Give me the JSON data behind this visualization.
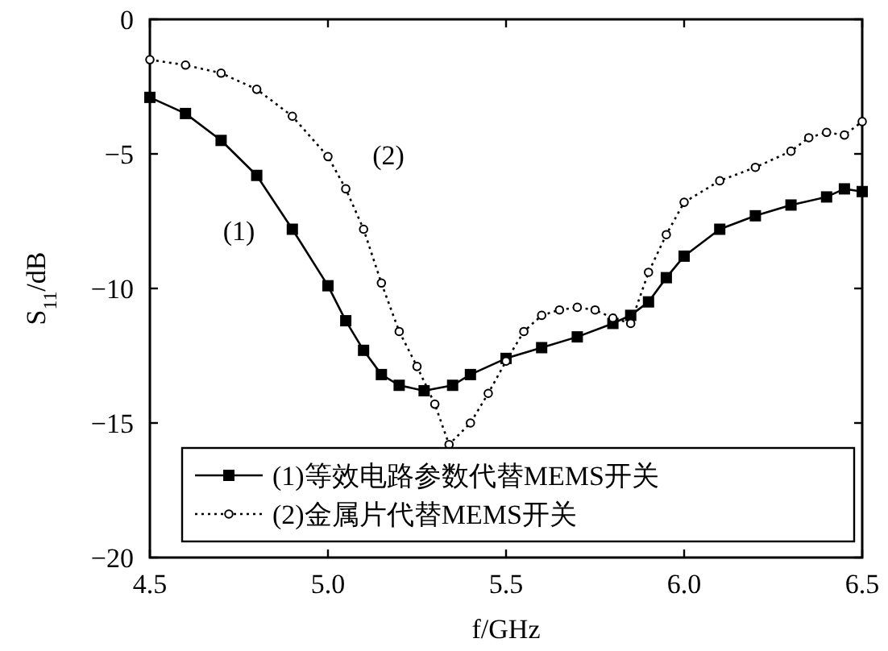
{
  "chart_data": {
    "type": "line",
    "xlabel": "f/GHz",
    "ylabel": "S$_{11}$/dB",
    "xlim": [
      4.5,
      6.5
    ],
    "ylim": [
      -20,
      0
    ],
    "xticks": [
      {
        "value": 4.5,
        "label": "4.5"
      },
      {
        "value": 5.0,
        "label": "5.0"
      },
      {
        "value": 5.5,
        "label": "5.5"
      },
      {
        "value": 6.0,
        "label": "6.0"
      },
      {
        "value": 6.5,
        "label": "6.5"
      }
    ],
    "yticks": [
      -20,
      -15,
      -10,
      -5,
      0
    ],
    "grid": false,
    "legend": "bottom",
    "series": [
      {
        "name": "(1)等效电路参数代替MEMS开关",
        "color": "#000000",
        "marker": "square",
        "line_style": "solid",
        "x": [
          4.5,
          4.6,
          4.7,
          4.8,
          4.9,
          5.0,
          5.05,
          5.1,
          5.15,
          5.2,
          5.27,
          5.35,
          5.4,
          5.5,
          5.6,
          5.7,
          5.8,
          5.85,
          5.9,
          5.95,
          6.0,
          6.1,
          6.2,
          6.3,
          6.4,
          6.45,
          6.5
        ],
        "values": [
          -2.9,
          -3.5,
          -4.5,
          -5.8,
          -7.8,
          -9.9,
          -11.2,
          -12.3,
          -13.2,
          -13.6,
          -13.8,
          -13.6,
          -13.2,
          -12.6,
          -12.2,
          -11.8,
          -11.3,
          -11.0,
          -10.5,
          -9.6,
          -8.8,
          -7.8,
          -7.3,
          -6.9,
          -6.6,
          -6.3,
          -6.4
        ]
      },
      {
        "name": "(2)金属片代替MEMS开关",
        "color": "#000000",
        "marker": "circle",
        "line_style": "dotted",
        "x": [
          4.5,
          4.6,
          4.7,
          4.8,
          4.9,
          5.0,
          5.05,
          5.1,
          5.15,
          5.2,
          5.25,
          5.3,
          5.34,
          5.4,
          5.45,
          5.5,
          5.55,
          5.6,
          5.65,
          5.7,
          5.75,
          5.8,
          5.85,
          5.9,
          5.95,
          6.0,
          6.1,
          6.2,
          6.3,
          6.35,
          6.4,
          6.45,
          6.5
        ],
        "values": [
          -1.5,
          -1.7,
          -2.0,
          -2.6,
          -3.6,
          -5.1,
          -6.3,
          -7.8,
          -9.8,
          -11.6,
          -12.9,
          -14.3,
          -15.8,
          -15.0,
          -13.9,
          -12.7,
          -11.6,
          -11.0,
          -10.8,
          -10.7,
          -10.8,
          -11.1,
          -11.3,
          -9.4,
          -8.0,
          -6.8,
          -6.0,
          -5.5,
          -4.9,
          -4.4,
          -4.2,
          -4.3,
          -3.8
        ]
      }
    ],
    "annotations": [
      "(1)",
      "(2)"
    ]
  }
}
